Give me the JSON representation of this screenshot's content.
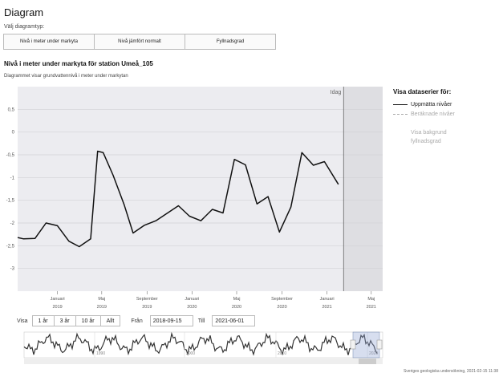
{
  "page": {
    "title": "Diagram",
    "choose_type_label": "Välj diagramtyp:"
  },
  "chart_types": [
    {
      "label": "Nivå i meter under markyta"
    },
    {
      "label": "Nivå jämfört normalt"
    },
    {
      "label": "Fyllnadsgrad"
    }
  ],
  "chart_title": "Nivå i meter under markyta för station Umeå_105",
  "chart_subtitle": "Diagrammet visar grundvattennivå i meter under markytan",
  "chart_data": {
    "type": "line",
    "title": "Nivå i meter under markyta för station Umeå_105",
    "subtitle": "Diagrammet visar grundvattennivå i meter under markytan",
    "xlabel": "",
    "ylabel": "",
    "ylim": [
      -3.5,
      1.0
    ],
    "xlim": [
      "2018-09-15",
      "2021-06-01"
    ],
    "grid": true,
    "legend_position": "right",
    "y_ticks": [
      "0,5",
      "0",
      "-0,5",
      "-1",
      "-1,5",
      "-2",
      "-2,5",
      "-3"
    ],
    "x_ticks": [
      {
        "date": "2019-01-01",
        "line1": "Januari",
        "line2": "2019"
      },
      {
        "date": "2019-05-01",
        "line1": "Maj",
        "line2": "2019"
      },
      {
        "date": "2019-09-01",
        "line1": "September",
        "line2": "2019"
      },
      {
        "date": "2020-01-01",
        "line1": "Januari",
        "line2": "2020"
      },
      {
        "date": "2020-05-01",
        "line1": "Maj",
        "line2": "2020"
      },
      {
        "date": "2020-09-01",
        "line1": "September",
        "line2": "2020"
      },
      {
        "date": "2021-01-01",
        "line1": "Januari",
        "line2": "2021"
      },
      {
        "date": "2021-05-01",
        "line1": "Maj",
        "line2": "2021"
      }
    ],
    "today_label": "Idag",
    "today_date": "2021-02-15",
    "series": [
      {
        "name": "Uppmätta nivåer",
        "color": "#111111",
        "points": [
          [
            "2018-09-15",
            -2.32
          ],
          [
            "2018-10-01",
            -2.35
          ],
          [
            "2018-11-01",
            -2.34
          ],
          [
            "2018-12-01",
            -2.0
          ],
          [
            "2019-01-01",
            -2.06
          ],
          [
            "2019-02-01",
            -2.4
          ],
          [
            "2019-03-01",
            -2.52
          ],
          [
            "2019-04-01",
            -2.35
          ],
          [
            "2019-04-20",
            -0.42
          ],
          [
            "2019-05-05",
            -0.45
          ],
          [
            "2019-06-01",
            -0.95
          ],
          [
            "2019-07-01",
            -1.6
          ],
          [
            "2019-07-25",
            -2.22
          ],
          [
            "2019-08-25",
            -2.05
          ],
          [
            "2019-09-25",
            -1.95
          ],
          [
            "2019-11-25",
            -1.62
          ],
          [
            "2019-12-25",
            -1.85
          ],
          [
            "2020-01-25",
            -1.95
          ],
          [
            "2020-02-25",
            -1.7
          ],
          [
            "2020-03-25",
            -1.78
          ],
          [
            "2020-04-25",
            -0.6
          ],
          [
            "2020-05-25",
            -0.72
          ],
          [
            "2020-06-25",
            -1.58
          ],
          [
            "2020-07-25",
            -1.42
          ],
          [
            "2020-08-25",
            -2.2
          ],
          [
            "2020-09-25",
            -1.65
          ],
          [
            "2020-10-25",
            -0.45
          ],
          [
            "2020-11-25",
            -0.73
          ],
          [
            "2020-12-25",
            -0.65
          ],
          [
            "2021-02-01",
            -1.15
          ]
        ]
      }
    ],
    "navigator": {
      "tick_labels": [
        "1990",
        "2000",
        "2010",
        "2020"
      ]
    }
  },
  "legend": {
    "heading": "Visa dataserier för:",
    "measured": "Uppmätta nivåer",
    "calculated": "Beräknade nivåer",
    "background": "Visa bakgrund fyllnadsgrad"
  },
  "range_selector": {
    "show_label": "Visa",
    "buttons": [
      "1 år",
      "3 år",
      "10 år",
      "Allt"
    ],
    "from_label": "Från",
    "from_value": "2018-09-15",
    "to_label": "Till",
    "to_value": "2021-06-01"
  },
  "footer": "Sveriges geologiska undersökning, 2021-02-15 11:38"
}
